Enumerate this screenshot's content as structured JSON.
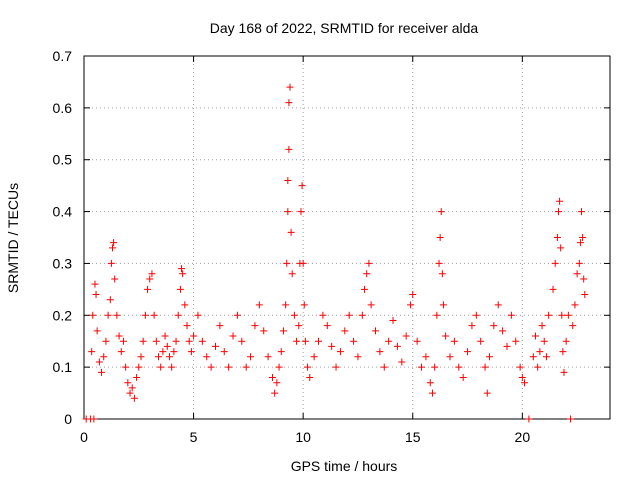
{
  "chart_data": {
    "type": "scatter",
    "title": "Day 168 of 2022, SRMTID for receiver alda",
    "xlabel": "GPS time / hours",
    "ylabel": "SRMTID / TECUs",
    "xlim": [
      0,
      24
    ],
    "ylim": [
      0,
      0.7
    ],
    "xticks": [
      0,
      5,
      10,
      15,
      20
    ],
    "xtick_labels": [
      "0",
      "5",
      "10",
      "15",
      "20"
    ],
    "yticks": [
      0,
      0.1,
      0.2,
      0.3,
      0.4,
      0.5,
      0.6,
      0.7
    ],
    "ytick_labels": [
      "0",
      "0.1",
      "0.2",
      "0.3",
      "0.4",
      "0.5",
      "0.6",
      "0.7"
    ],
    "grid": true,
    "marker": "plus",
    "color": "#ff0000",
    "series": [
      {
        "name": "SRMTID",
        "points": [
          [
            0.1,
            0.0
          ],
          [
            0.3,
            0.0
          ],
          [
            0.45,
            0.0
          ],
          [
            0.35,
            0.13
          ],
          [
            0.4,
            0.2
          ],
          [
            0.5,
            0.26
          ],
          [
            0.55,
            0.24
          ],
          [
            0.6,
            0.17
          ],
          [
            0.7,
            0.11
          ],
          [
            0.8,
            0.09
          ],
          [
            0.9,
            0.12
          ],
          [
            1.0,
            0.15
          ],
          [
            1.1,
            0.2
          ],
          [
            1.2,
            0.23
          ],
          [
            1.25,
            0.3
          ],
          [
            1.3,
            0.33
          ],
          [
            1.35,
            0.34
          ],
          [
            1.4,
            0.27
          ],
          [
            1.5,
            0.2
          ],
          [
            1.6,
            0.16
          ],
          [
            1.7,
            0.13
          ],
          [
            1.8,
            0.15
          ],
          [
            1.9,
            0.1
          ],
          [
            2.0,
            0.07
          ],
          [
            2.1,
            0.05
          ],
          [
            2.2,
            0.06
          ],
          [
            2.3,
            0.04
          ],
          [
            2.4,
            0.08
          ],
          [
            2.5,
            0.1
          ],
          [
            2.6,
            0.12
          ],
          [
            2.7,
            0.15
          ],
          [
            2.8,
            0.2
          ],
          [
            2.9,
            0.25
          ],
          [
            3.0,
            0.27
          ],
          [
            3.1,
            0.28
          ],
          [
            3.2,
            0.2
          ],
          [
            3.3,
            0.15
          ],
          [
            3.4,
            0.12
          ],
          [
            3.5,
            0.1
          ],
          [
            3.6,
            0.13
          ],
          [
            3.7,
            0.16
          ],
          [
            3.8,
            0.14
          ],
          [
            3.9,
            0.12
          ],
          [
            4.0,
            0.1
          ],
          [
            4.1,
            0.13
          ],
          [
            4.2,
            0.15
          ],
          [
            4.3,
            0.2
          ],
          [
            4.4,
            0.25
          ],
          [
            4.45,
            0.29
          ],
          [
            4.5,
            0.28
          ],
          [
            4.6,
            0.22
          ],
          [
            4.7,
            0.18
          ],
          [
            4.8,
            0.15
          ],
          [
            4.9,
            0.13
          ],
          [
            5.0,
            0.16
          ],
          [
            5.2,
            0.2
          ],
          [
            5.4,
            0.15
          ],
          [
            5.6,
            0.12
          ],
          [
            5.8,
            0.1
          ],
          [
            6.0,
            0.14
          ],
          [
            6.2,
            0.18
          ],
          [
            6.4,
            0.13
          ],
          [
            6.6,
            0.1
          ],
          [
            6.8,
            0.16
          ],
          [
            7.0,
            0.2
          ],
          [
            7.2,
            0.15
          ],
          [
            7.4,
            0.1
          ],
          [
            7.6,
            0.12
          ],
          [
            7.8,
            0.18
          ],
          [
            8.0,
            0.22
          ],
          [
            8.2,
            0.17
          ],
          [
            8.4,
            0.12
          ],
          [
            8.6,
            0.08
          ],
          [
            8.7,
            0.05
          ],
          [
            8.8,
            0.07
          ],
          [
            8.9,
            0.1
          ],
          [
            9.0,
            0.13
          ],
          [
            9.1,
            0.17
          ],
          [
            9.2,
            0.22
          ],
          [
            9.25,
            0.3
          ],
          [
            9.3,
            0.4
          ],
          [
            9.3,
            0.46
          ],
          [
            9.35,
            0.52
          ],
          [
            9.35,
            0.61
          ],
          [
            9.4,
            0.64
          ],
          [
            9.45,
            0.36
          ],
          [
            9.5,
            0.28
          ],
          [
            9.6,
            0.2
          ],
          [
            9.7,
            0.15
          ],
          [
            9.8,
            0.18
          ],
          [
            9.85,
            0.3
          ],
          [
            9.9,
            0.4
          ],
          [
            9.95,
            0.45
          ],
          [
            10.0,
            0.3
          ],
          [
            10.05,
            0.22
          ],
          [
            10.1,
            0.15
          ],
          [
            10.2,
            0.1
          ],
          [
            10.3,
            0.08
          ],
          [
            10.5,
            0.12
          ],
          [
            10.7,
            0.15
          ],
          [
            10.9,
            0.2
          ],
          [
            11.1,
            0.18
          ],
          [
            11.3,
            0.14
          ],
          [
            11.5,
            0.1
          ],
          [
            11.7,
            0.13
          ],
          [
            11.9,
            0.17
          ],
          [
            12.1,
            0.2
          ],
          [
            12.3,
            0.15
          ],
          [
            12.5,
            0.12
          ],
          [
            12.7,
            0.2
          ],
          [
            12.8,
            0.25
          ],
          [
            12.9,
            0.28
          ],
          [
            13.0,
            0.3
          ],
          [
            13.1,
            0.22
          ],
          [
            13.3,
            0.17
          ],
          [
            13.5,
            0.13
          ],
          [
            13.7,
            0.1
          ],
          [
            13.9,
            0.15
          ],
          [
            14.1,
            0.19
          ],
          [
            14.3,
            0.14
          ],
          [
            14.5,
            0.11
          ],
          [
            14.7,
            0.16
          ],
          [
            14.9,
            0.22
          ],
          [
            15.0,
            0.24
          ],
          [
            15.2,
            0.15
          ],
          [
            15.4,
            0.1
          ],
          [
            15.6,
            0.12
          ],
          [
            15.8,
            0.07
          ],
          [
            15.9,
            0.05
          ],
          [
            16.0,
            0.1
          ],
          [
            16.1,
            0.2
          ],
          [
            16.2,
            0.3
          ],
          [
            16.25,
            0.35
          ],
          [
            16.3,
            0.4
          ],
          [
            16.35,
            0.28
          ],
          [
            16.4,
            0.22
          ],
          [
            16.5,
            0.16
          ],
          [
            16.7,
            0.12
          ],
          [
            16.9,
            0.15
          ],
          [
            17.1,
            0.1
          ],
          [
            17.3,
            0.08
          ],
          [
            17.5,
            0.13
          ],
          [
            17.7,
            0.18
          ],
          [
            17.9,
            0.2
          ],
          [
            18.1,
            0.15
          ],
          [
            18.3,
            0.1
          ],
          [
            18.4,
            0.05
          ],
          [
            18.5,
            0.12
          ],
          [
            18.7,
            0.18
          ],
          [
            18.9,
            0.22
          ],
          [
            19.1,
            0.17
          ],
          [
            19.3,
            0.14
          ],
          [
            19.5,
            0.2
          ],
          [
            19.7,
            0.15
          ],
          [
            19.9,
            0.1
          ],
          [
            20.0,
            0.08
          ],
          [
            20.1,
            0.07
          ],
          [
            20.3,
            0.0
          ],
          [
            20.5,
            0.12
          ],
          [
            20.6,
            0.16
          ],
          [
            20.7,
            0.1
          ],
          [
            20.8,
            0.13
          ],
          [
            20.9,
            0.18
          ],
          [
            21.0,
            0.15
          ],
          [
            21.1,
            0.12
          ],
          [
            21.2,
            0.2
          ],
          [
            21.4,
            0.25
          ],
          [
            21.5,
            0.3
          ],
          [
            21.6,
            0.35
          ],
          [
            21.65,
            0.4
          ],
          [
            21.7,
            0.42
          ],
          [
            21.75,
            0.33
          ],
          [
            21.8,
            0.2
          ],
          [
            21.85,
            0.13
          ],
          [
            21.9,
            0.09
          ],
          [
            22.0,
            0.15
          ],
          [
            22.1,
            0.2
          ],
          [
            22.2,
            0.0
          ],
          [
            22.3,
            0.18
          ],
          [
            22.4,
            0.22
          ],
          [
            22.5,
            0.28
          ],
          [
            22.6,
            0.3
          ],
          [
            22.65,
            0.34
          ],
          [
            22.7,
            0.4
          ],
          [
            22.75,
            0.35
          ],
          [
            22.8,
            0.27
          ],
          [
            22.85,
            0.24
          ]
        ]
      }
    ]
  }
}
